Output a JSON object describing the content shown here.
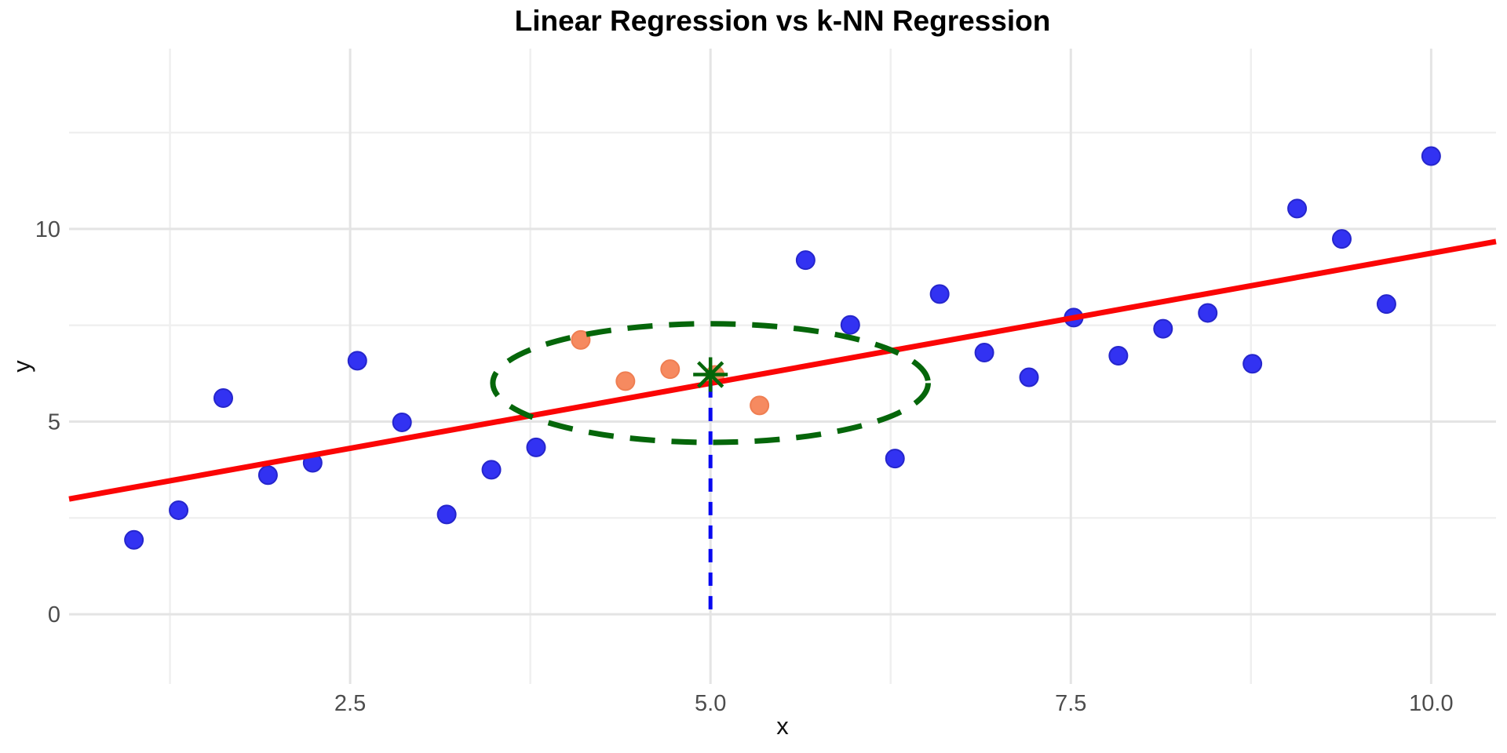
{
  "title": "Linear Regression vs k-NN Regression",
  "axes": {
    "x_label": "x",
    "y_label": "y",
    "x_tick_labels": [
      "2.5",
      "5.0",
      "7.5",
      "10.0"
    ],
    "y_tick_labels": [
      "0",
      "5",
      "10"
    ]
  },
  "colors": {
    "point_blue_fill": "#3232f2",
    "point_blue_stroke": "#2626cc",
    "point_orange_fill": "#f68a60",
    "point_orange_stroke": "#ef7e52",
    "regression_red": "#fb0505",
    "knn_green": "#05660a",
    "query_blue": "#0808f0",
    "grid_major": "#e4e4e4",
    "grid_minor": "#efefef",
    "tick_text": "#4d4d4d"
  },
  "chart_data": {
    "type": "scatter",
    "title": "Linear Regression vs k-NN Regression",
    "xlabel": "x",
    "ylabel": "y",
    "xlim": [
      0.55,
      10.45
    ],
    "ylim": [
      -1.81,
      14.68
    ],
    "x_major_ticks": [
      2.5,
      5.0,
      7.5,
      10.0
    ],
    "x_minor_ticks": [
      1.25,
      3.75,
      6.25,
      8.75
    ],
    "y_major_ticks": [
      0,
      5,
      10
    ],
    "y_minor_ticks": [
      2.5,
      7.5,
      12.5
    ],
    "grid": true,
    "legend": "none",
    "series": [
      {
        "name": "training-points",
        "marker": "circle",
        "color": "#3232f2",
        "points": [
          [
            1.0,
            1.93
          ],
          [
            1.31,
            2.7
          ],
          [
            1.62,
            5.61
          ],
          [
            1.93,
            3.61
          ],
          [
            2.24,
            3.93
          ],
          [
            2.55,
            6.58
          ],
          [
            2.86,
            4.98
          ],
          [
            3.17,
            2.59
          ],
          [
            3.48,
            3.75
          ],
          [
            3.79,
            4.33
          ],
          [
            5.66,
            9.19
          ],
          [
            5.97,
            7.51
          ],
          [
            6.28,
            4.04
          ],
          [
            6.59,
            8.31
          ],
          [
            6.9,
            6.79
          ],
          [
            7.21,
            6.15
          ],
          [
            7.52,
            7.7
          ],
          [
            7.83,
            6.71
          ],
          [
            8.14,
            7.41
          ],
          [
            8.45,
            7.82
          ],
          [
            8.76,
            6.5
          ],
          [
            9.07,
            10.53
          ],
          [
            9.38,
            9.74
          ],
          [
            9.69,
            8.05
          ],
          [
            10.0,
            11.89
          ]
        ]
      },
      {
        "name": "knn-nearest-neighbors",
        "marker": "circle",
        "color": "#f68a60",
        "points": [
          [
            4.1,
            7.12
          ],
          [
            4.41,
            6.05
          ],
          [
            4.72,
            6.36
          ],
          [
            5.03,
            6.21
          ],
          [
            5.34,
            5.42
          ]
        ]
      }
    ],
    "regression_line": {
      "name": "linear-regression-fit",
      "intercept": 2.62,
      "slope": 0.675,
      "color": "#fb0505",
      "width": 7
    },
    "knn": {
      "query_x": 5.0,
      "prediction_y": 6.22,
      "k": 5,
      "prediction_marker": "asterisk-8-ray",
      "neighborhood_ellipse": {
        "cx": 5.0,
        "cy": 6.0,
        "rx": 1.51,
        "ry": 1.54
      },
      "query_line": {
        "x": 5.0,
        "y_bottom": 0,
        "y_top": 5.97
      }
    }
  }
}
